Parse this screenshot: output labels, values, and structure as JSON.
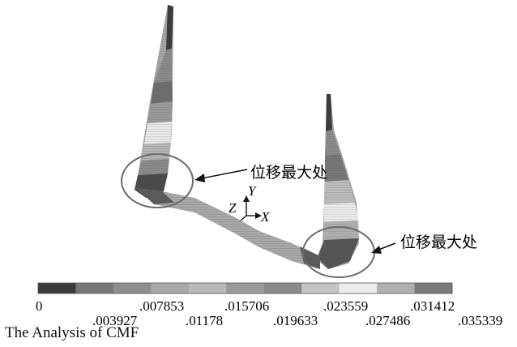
{
  "annotations": {
    "max_disp_label_1": "位移最大处",
    "max_disp_label_2": "位移最大处"
  },
  "axes": {
    "x": "X",
    "y": "Y",
    "z": "Z"
  },
  "legend": {
    "colors": [
      "#3b3b3b",
      "#777777",
      "#8e8e8e",
      "#a8a8a8",
      "#b8b8b8",
      "#9a9a9a",
      "#8a8a8a",
      "#c4c4c4",
      "#ececec",
      "#b0b0b0",
      "#7a7a7a"
    ],
    "ticks_upper": [
      "0",
      ".007853",
      ".015706",
      ".023559",
      ".031412"
    ],
    "ticks_lower": [
      ".003927",
      ".01178",
      ".019633",
      ".027486",
      ".035339"
    ]
  },
  "caption": "The Analysis of CMF"
}
